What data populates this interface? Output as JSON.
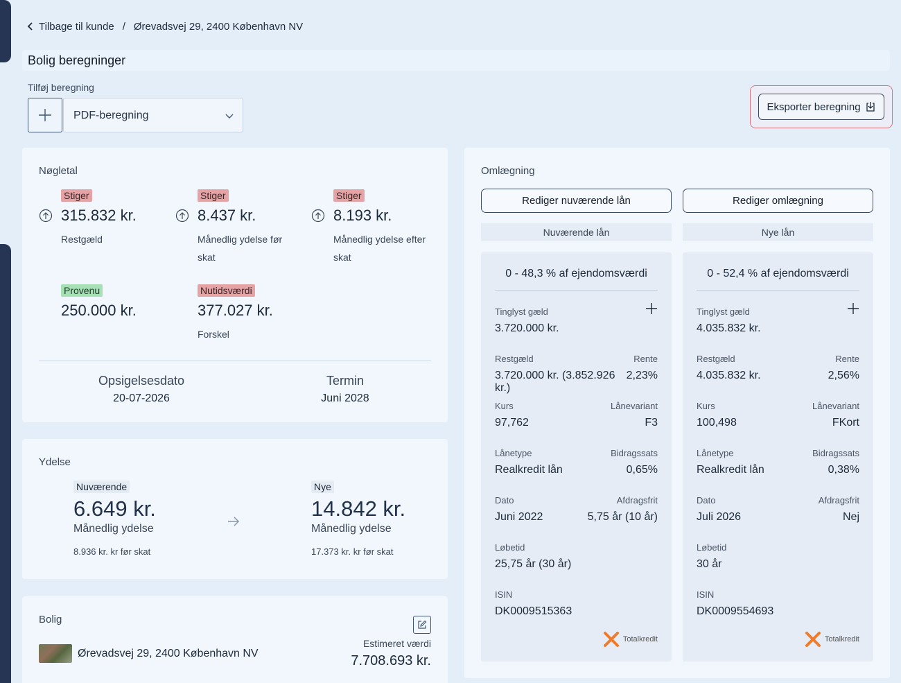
{
  "breadcrumb": {
    "back_label": "Tilbage til kunde",
    "separator": "/",
    "address": "Ørevadsvej 29, 2400 København NV"
  },
  "page": {
    "title": "Bolig beregninger"
  },
  "add_calc": {
    "label": "Tilføj beregning",
    "selected": "PDF-beregning"
  },
  "export": {
    "label": "Eksporter beregning"
  },
  "noegletal": {
    "title": "Nøgletal",
    "items": [
      {
        "badge": "Stiger",
        "value": "315.832 kr.",
        "desc": "Restgæld"
      },
      {
        "badge": "Stiger",
        "value": "8.437 kr.",
        "desc1": "Månedlig ydelse før",
        "desc2": "skat"
      },
      {
        "badge": "Stiger",
        "value": "8.193 kr.",
        "desc1": "Månedlig ydelse efter",
        "desc2": "skat"
      },
      {
        "badge": "Provenu",
        "value": "250.000 kr."
      },
      {
        "badge": "Nutidsværdi",
        "value": "377.027 kr.",
        "desc": "Forskel"
      }
    ],
    "opsigelse": {
      "label": "Opsigelsesdato",
      "value": "20-07-2026"
    },
    "termin": {
      "label": "Termin",
      "value": "Juni 2028"
    }
  },
  "ydelse": {
    "title": "Ydelse",
    "current": {
      "badge": "Nuværende",
      "value": "6.649 kr.",
      "sub": "Månedlig ydelse",
      "small": "8.936 kr. kr før skat"
    },
    "new": {
      "badge": "Nye",
      "value": "14.842 kr.",
      "sub": "Månedlig ydelse",
      "small": "17.373 kr. kr før skat"
    }
  },
  "bolig": {
    "title": "Bolig",
    "address": "Ørevadsvej 29, 2400 København NV",
    "est_label": "Estimeret værdi",
    "est_value": "7.708.693 kr."
  },
  "omlaegning": {
    "title": "Omlægning",
    "btn_current": "Rediger nuværende lån",
    "btn_new": "Rediger omlægning",
    "current": {
      "head": "Nuværende lån",
      "range": "0 - 48,3 % af ejendomsværdi",
      "tinglyst_label": "Tinglyst gæld",
      "tinglyst": "3.720.000 kr.",
      "restgaeld_label": "Restgæld",
      "restgaeld": "3.720.000 kr. (3.852.926 kr.)",
      "rente_label": "Rente",
      "rente": "2,23%",
      "kurs_label": "Kurs",
      "kurs": "97,762",
      "variant_label": "Lånevariant",
      "variant": "F3",
      "type_label": "Lånetype",
      "type": "Realkredit lån",
      "bidrag_label": "Bidragssats",
      "bidrag": "0,65%",
      "dato_label": "Dato",
      "dato": "Juni 2022",
      "afdrag_label": "Afdragsfrit",
      "afdrag": "5,75 år (10 år)",
      "loebetid_label": "Løbetid",
      "loebetid": "25,75 år (30 år)",
      "isin_label": "ISIN",
      "isin": "DK0009515363",
      "logo": "Totalkredit"
    },
    "new": {
      "head": "Nye lån",
      "range": "0 - 52,4 % af ejendomsværdi",
      "tinglyst_label": "Tinglyst gæld",
      "tinglyst": "4.035.832 kr.",
      "restgaeld_label": "Restgæld",
      "restgaeld": "4.035.832 kr.",
      "rente_label": "Rente",
      "rente": "2,56%",
      "kurs_label": "Kurs",
      "kurs": "100,498",
      "variant_label": "Lånevariant",
      "variant": "FKort",
      "type_label": "Lånetype",
      "type": "Realkredit lån",
      "bidrag_label": "Bidragssats",
      "bidrag": "0,38%",
      "dato_label": "Dato",
      "dato": "Juli 2026",
      "afdrag_label": "Afdragsfrit",
      "afdrag": "Nej",
      "loebetid_label": "Løbetid",
      "loebetid": "30 år",
      "isin_label": "ISIN",
      "isin": "DK0009554693",
      "logo": "Totalkredit"
    }
  }
}
